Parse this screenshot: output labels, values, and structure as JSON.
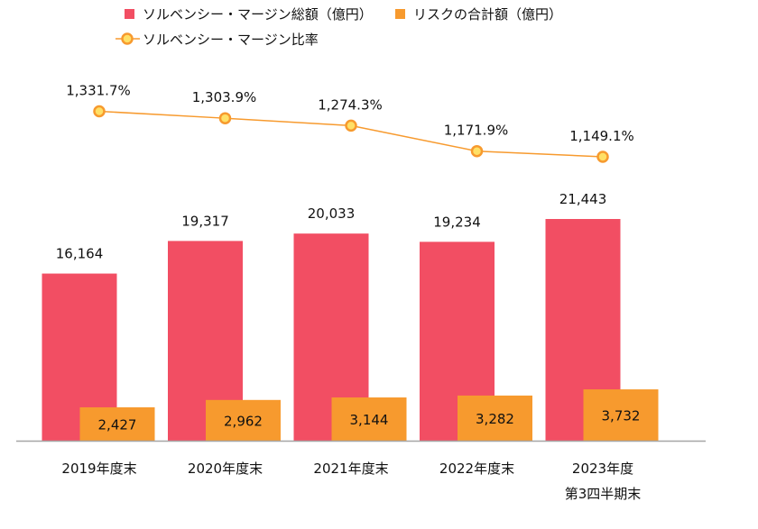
{
  "chart_data": {
    "type": "bar",
    "categories": [
      "2019年度末",
      "2020年度末",
      "2021年度末",
      "2022年度末",
      "2023年度\n第3四半期末"
    ],
    "series": [
      {
        "name": "ソルベンシー・マージン総額（億円）",
        "type": "bar",
        "color": "#F24E63",
        "values": [
          16164,
          19317,
          20033,
          19234,
          21443
        ],
        "labels": [
          "16,164",
          "19,317",
          "20,033",
          "19,234",
          "21,443"
        ]
      },
      {
        "name": "リスクの合計額（億円）",
        "type": "bar",
        "color": "#F79A2E",
        "values": [
          2427,
          2962,
          3144,
          3282,
          3732
        ],
        "labels": [
          "2,427",
          "2,962",
          "3,144",
          "3,282",
          "3,732"
        ]
      },
      {
        "name": "ソルベンシー・マージン比率",
        "type": "line",
        "color": "#F79A2E",
        "marker_fill": "#FFE066",
        "values": [
          1331.7,
          1303.9,
          1274.3,
          1171.9,
          1149.1
        ],
        "labels": [
          "1,331.7%",
          "1,303.9%",
          "1,274.3%",
          "1,171.9%",
          "1,149.1%"
        ]
      }
    ],
    "legend": "top",
    "grid": false
  }
}
